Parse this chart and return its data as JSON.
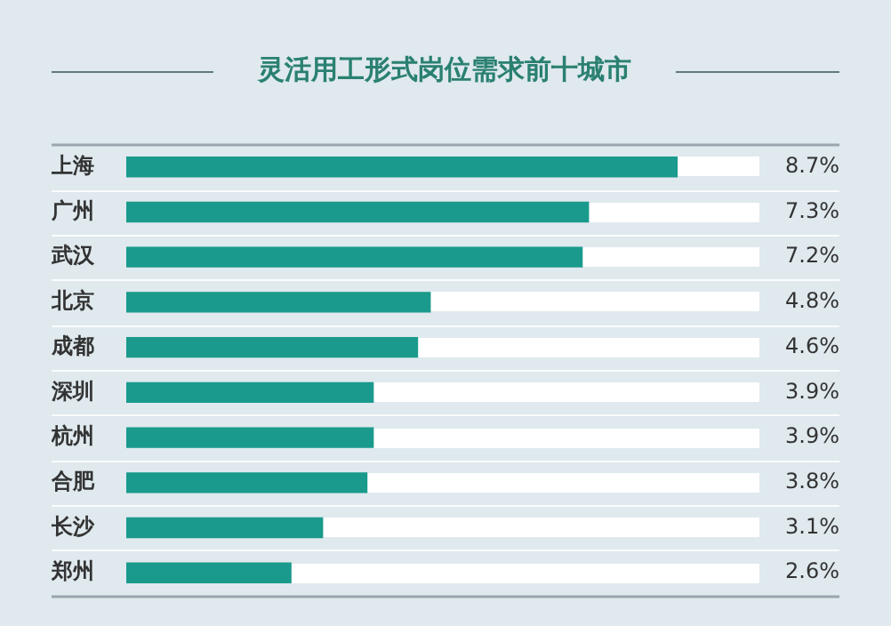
{
  "chart_data": {
    "type": "bar",
    "orientation": "horizontal",
    "title": "灵活用工形式岗位需求前十城市",
    "categories": [
      "上海",
      "广州",
      "武汉",
      "北京",
      "成都",
      "深圳",
      "杭州",
      "合肥",
      "长沙",
      "郑州"
    ],
    "values": [
      8.7,
      7.3,
      7.2,
      4.8,
      4.6,
      3.9,
      3.9,
      3.8,
      3.1,
      2.6
    ],
    "value_labels": [
      "8.7%",
      "7.3%",
      "7.2%",
      "4.8%",
      "4.6%",
      "3.9%",
      "3.9%",
      "3.8%",
      "3.1%",
      "2.6%"
    ],
    "color": "#1a9a8c",
    "grid": "y",
    "legend": false
  }
}
